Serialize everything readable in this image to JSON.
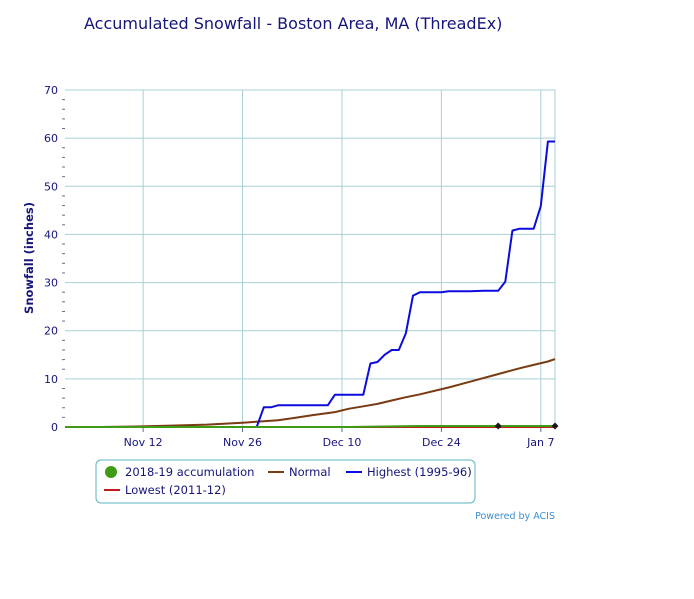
{
  "chart_data": {
    "type": "line",
    "title": "Accumulated Snowfall - Boston Area, MA (ThreadEx)",
    "xlabel": "",
    "ylabel": "Snowfall (inches)",
    "ylim": [
      0,
      70
    ],
    "y_ticks": [
      0,
      10,
      20,
      30,
      40,
      50,
      60,
      70
    ],
    "x_day_range": [
      0,
      69
    ],
    "x_ticks": [
      {
        "day": 11,
        "label": "Nov 12"
      },
      {
        "day": 25,
        "label": "Nov 26"
      },
      {
        "day": 39,
        "label": "Dec 10"
      },
      {
        "day": 53,
        "label": "Dec 24"
      },
      {
        "day": 67,
        "label": "Jan 7"
      }
    ],
    "grid": true,
    "legend_position": "bottom",
    "series": [
      {
        "name": "2018-19 accumulation",
        "color": "#3f9a16",
        "points": [
          [
            0,
            0
          ],
          [
            10,
            0
          ],
          [
            20,
            0
          ],
          [
            30,
            0
          ],
          [
            40,
            0
          ],
          [
            45,
            0.1
          ],
          [
            50,
            0.2
          ],
          [
            55,
            0.2
          ],
          [
            60,
            0.2
          ],
          [
            64,
            0.2
          ],
          [
            66,
            0.2
          ],
          [
            69,
            0.2
          ]
        ],
        "markers": [
          [
            61,
            0.2
          ],
          [
            69,
            0.2
          ]
        ]
      },
      {
        "name": "Normal",
        "color": "#7a3a12",
        "points": [
          [
            0,
            0
          ],
          [
            5,
            0
          ],
          [
            10,
            0.1
          ],
          [
            15,
            0.3
          ],
          [
            20,
            0.5
          ],
          [
            25,
            0.9
          ],
          [
            28,
            1.2
          ],
          [
            30,
            1.4
          ],
          [
            32,
            1.8
          ],
          [
            35,
            2.5
          ],
          [
            38,
            3.1
          ],
          [
            40,
            3.8
          ],
          [
            42,
            4.3
          ],
          [
            44,
            4.8
          ],
          [
            46,
            5.5
          ],
          [
            48,
            6.2
          ],
          [
            50,
            6.8
          ],
          [
            52,
            7.5
          ],
          [
            54,
            8.2
          ],
          [
            56,
            9.0
          ],
          [
            58,
            9.8
          ],
          [
            60,
            10.6
          ],
          [
            62,
            11.4
          ],
          [
            64,
            12.2
          ],
          [
            66,
            12.9
          ],
          [
            68,
            13.6
          ],
          [
            69,
            14.1
          ]
        ]
      },
      {
        "name": "Highest (1995-96)",
        "color": "#0c0cdc",
        "points": [
          [
            0,
            0
          ],
          [
            20,
            0
          ],
          [
            26,
            0
          ],
          [
            27,
            0
          ],
          [
            28,
            4.1
          ],
          [
            29,
            4.1
          ],
          [
            30,
            4.5
          ],
          [
            31,
            4.5
          ],
          [
            34,
            4.5
          ],
          [
            37,
            4.5
          ],
          [
            38,
            6.7
          ],
          [
            41,
            6.7
          ],
          [
            42,
            6.7
          ],
          [
            43,
            13.2
          ],
          [
            44,
            13.5
          ],
          [
            45,
            15
          ],
          [
            46,
            16
          ],
          [
            47,
            16
          ],
          [
            48,
            19.5
          ],
          [
            49,
            27.3
          ],
          [
            50,
            28
          ],
          [
            53,
            28
          ],
          [
            54,
            28.2
          ],
          [
            57,
            28.2
          ],
          [
            59,
            28.3
          ],
          [
            61,
            28.3
          ],
          [
            62,
            30.2
          ],
          [
            63,
            40.8
          ],
          [
            64,
            41.2
          ],
          [
            66,
            41.2
          ],
          [
            67,
            45.9
          ],
          [
            68,
            59.3
          ],
          [
            69,
            59.3
          ]
        ]
      },
      {
        "name": "Lowest (2011-12)",
        "color": "#c41c1c",
        "points": [
          [
            0,
            0
          ],
          [
            20,
            0
          ],
          [
            40,
            0
          ],
          [
            60,
            0
          ],
          [
            69,
            0
          ]
        ]
      }
    ],
    "credit": "Powered by ACIS"
  }
}
